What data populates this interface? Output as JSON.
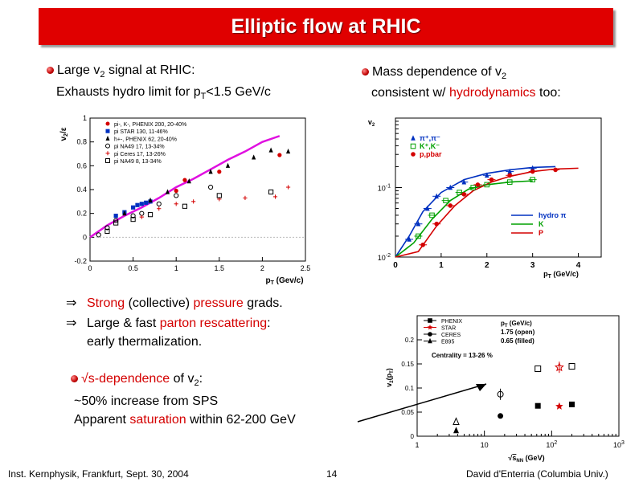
{
  "title": "Elliptic flow at RHIC",
  "left_bullet": {
    "line1_prefix": "Large v",
    "line1_sub": "2",
    "line1_suffix": " signal at RHIC:",
    "line2_prefix": "Exhausts hydro limit for p",
    "line2_sub": "T",
    "line2_suffix": "<1.5 GeV/c"
  },
  "right_bullet": {
    "line1_prefix": "Mass dependence of v",
    "line1_sub": "2",
    "line2_prefix": "consistent w/ ",
    "line2_red": "hydrodynamics",
    "line2_suffix": " too:"
  },
  "implications": [
    {
      "arrow": "⇒",
      "red1": "Strong",
      "mid1": " (collective) ",
      "red2": "pressure",
      "end": " grads."
    },
    {
      "arrow": "⇒",
      "pre": "Large & fast ",
      "red": "parton rescattering",
      "end": ":",
      "line2": "early thermalization."
    }
  ],
  "sqrt_bullet": {
    "red": "√s-dependence",
    "mid": " of v",
    "sub": "2",
    "end": ":",
    "line2": "~50% increase from SPS",
    "line3_pre": "Apparent ",
    "line3_red": "saturation",
    "line3_end": " within 62-200 GeV"
  },
  "footer": {
    "left": "Inst. Kernphysik, Frankfurt, Sept. 30, 2004",
    "page": "14",
    "right": "David d'Enterria (Columbia Univ.)"
  },
  "chart_data": [
    {
      "type": "scatter",
      "title": "",
      "xlabel": "p_T (Gev/c)",
      "ylabel": "v_2/ε",
      "xlim": [
        0,
        2.5
      ],
      "ylim": [
        -0.2,
        1.0
      ],
      "xticks": [
        "0",
        "0.5",
        "1",
        "1.5",
        "2",
        "2.5"
      ],
      "yticks": [
        "-0.2",
        "0",
        "0.2",
        "0.4",
        "0.6",
        "0.8",
        "1"
      ],
      "legend_position": "top-left",
      "series": [
        {
          "name": "pi-, K-, PHENIX 200, 20-40%",
          "marker": "filled-circle",
          "color": "#d40000",
          "x": [
            1.0,
            1.1,
            1.5,
            2.2
          ],
          "y": [
            0.39,
            0.48,
            0.55,
            0.69
          ]
        },
        {
          "name": "pi STAR 130, 11-46%",
          "marker": "filled-square",
          "color": "#0030c0",
          "x": [
            0.3,
            0.4,
            0.5,
            0.55,
            0.6,
            0.65,
            0.7
          ],
          "y": [
            0.18,
            0.21,
            0.25,
            0.27,
            0.28,
            0.29,
            0.3
          ]
        },
        {
          "name": "h+-, PHENIX 62, 20-40%",
          "marker": "filled-triangle",
          "color": "#000000",
          "x": [
            0.4,
            0.7,
            0.9,
            1.15,
            1.4,
            1.6,
            1.9,
            2.1,
            2.3
          ],
          "y": [
            0.2,
            0.31,
            0.38,
            0.47,
            0.55,
            0.6,
            0.67,
            0.73,
            0.72
          ]
        },
        {
          "name": "pi NA49 17, 13-34%",
          "marker": "open-circle",
          "color": "#000000",
          "x": [
            0.1,
            0.2,
            0.3,
            0.5,
            0.6,
            0.8,
            1.0,
            1.4
          ],
          "y": [
            0.02,
            0.08,
            0.14,
            0.18,
            0.2,
            0.28,
            0.35,
            0.42
          ]
        },
        {
          "name": "pi Ceres 17, 13-26%",
          "marker": "open-cross",
          "color": "#d40000",
          "x": [
            0.6,
            0.8,
            1.0,
            1.2,
            1.5,
            1.8,
            2.15,
            2.3
          ],
          "y": [
            0.17,
            0.24,
            0.28,
            0.3,
            0.32,
            0.33,
            0.34,
            0.42
          ]
        },
        {
          "name": "pi NA49 8, 13-34%",
          "marker": "open-square",
          "color": "#000000",
          "x": [
            0.2,
            0.3,
            0.5,
            0.7,
            1.1,
            1.5,
            2.1
          ],
          "y": [
            0.05,
            0.12,
            0.15,
            0.19,
            0.26,
            0.35,
            0.38
          ]
        }
      ],
      "hydro_curve": {
        "color": "#e010e0",
        "x": [
          0.0,
          0.2,
          0.4,
          0.6,
          0.8,
          1.0,
          1.2,
          1.4,
          1.6,
          1.8,
          2.0,
          2.2
        ],
        "y": [
          0.0,
          0.1,
          0.18,
          0.25,
          0.33,
          0.42,
          0.49,
          0.57,
          0.65,
          0.72,
          0.8,
          0.85
        ]
      }
    },
    {
      "type": "line",
      "title": "",
      "xlabel": "p_T (GeV/c)",
      "ylabel": "v_2",
      "log_y": true,
      "xlim": [
        0,
        4.5
      ],
      "ylim": [
        0.01,
        1
      ],
      "xticks": [
        "0",
        "1",
        "2",
        "3",
        "4"
      ],
      "yticks": [
        "10^-2",
        "10^-1"
      ],
      "legend_position": "top-left",
      "data_series": [
        {
          "name": "π⁺,π⁻",
          "marker": "filled-triangle",
          "color": "#0030c0",
          "x": [
            0.3,
            0.5,
            0.7,
            0.9,
            1.2,
            1.5,
            2.0,
            2.5,
            3.0
          ],
          "y": [
            0.018,
            0.03,
            0.05,
            0.075,
            0.1,
            0.12,
            0.15,
            0.17,
            0.19
          ]
        },
        {
          "name": "K⁺,K⁻",
          "marker": "open-square",
          "color": "#00a000",
          "x": [
            0.5,
            0.8,
            1.1,
            1.4,
            1.7,
            2.0,
            2.5,
            3.0
          ],
          "y": [
            0.02,
            0.04,
            0.065,
            0.085,
            0.1,
            0.11,
            0.12,
            0.13
          ]
        },
        {
          "name": "p,pbar",
          "marker": "filled-circle",
          "color": "#d40000",
          "x": [
            0.6,
            0.9,
            1.2,
            1.5,
            1.8,
            2.1,
            2.5,
            3.0,
            3.5
          ],
          "y": [
            0.015,
            0.03,
            0.055,
            0.08,
            0.11,
            0.13,
            0.15,
            0.17,
            0.18
          ]
        }
      ],
      "curves": [
        {
          "name": "hydro π",
          "color": "#0030c0",
          "x": [
            0.0,
            0.3,
            0.6,
            1.0,
            1.5,
            2.0,
            2.5,
            3.0,
            3.5
          ],
          "y": [
            0.01,
            0.02,
            0.045,
            0.085,
            0.13,
            0.16,
            0.18,
            0.195,
            0.2
          ]
        },
        {
          "name": "K",
          "color": "#00a000",
          "x": [
            0.0,
            0.4,
            0.8,
            1.2,
            1.6,
            2.0,
            2.5,
            3.0
          ],
          "y": [
            0.01,
            0.016,
            0.035,
            0.065,
            0.095,
            0.11,
            0.12,
            0.125
          ]
        },
        {
          "name": "P",
          "color": "#d40000",
          "x": [
            0.0,
            0.5,
            0.9,
            1.3,
            1.7,
            2.1,
            2.5,
            3.0,
            3.5,
            4.0
          ],
          "y": [
            0.01,
            0.012,
            0.028,
            0.055,
            0.09,
            0.12,
            0.145,
            0.17,
            0.185,
            0.19
          ]
        }
      ]
    },
    {
      "type": "scatter",
      "title": "",
      "xlabel": "√s_NN (GeV)",
      "ylabel": "v_2(p_T)",
      "log_x": true,
      "xlim": [
        1,
        1000
      ],
      "ylim": [
        0,
        0.25
      ],
      "xticks": [
        "1",
        "10",
        "10^2",
        "10^3"
      ],
      "yticks": [
        "0",
        "0.05",
        "0.1",
        "0.15",
        "0.2"
      ],
      "legend_position": "top-left",
      "annotations": {
        "pt": "p_T  (GeV/c)",
        "open": "1.75  (open)",
        "filled": "0.65  (filled)",
        "centrality": "Centrality = 13-26 %"
      },
      "series": [
        {
          "name": "PHENIX",
          "marker": "square",
          "color": "#000000",
          "x": [
            62.4,
            200
          ],
          "y_open": [
            0.14,
            0.145
          ],
          "y_filled": [
            0.063,
            0.066
          ]
        },
        {
          "name": "STAR",
          "marker": "star",
          "color": "#d40000",
          "x": [
            130
          ],
          "y_open": [
            0.143
          ],
          "y_filled": [
            0.062
          ]
        },
        {
          "name": "CERES",
          "marker": "circle",
          "color": "#000000",
          "x": [
            17.3
          ],
          "y_open": [
            0.087
          ],
          "y_filled": [
            0.042
          ]
        },
        {
          "name": "E895",
          "marker": "triangle",
          "color": "#000000",
          "x": [
            3.8
          ],
          "y_open": [
            0.03
          ],
          "y_filled": [
            0.012
          ]
        }
      ]
    }
  ]
}
